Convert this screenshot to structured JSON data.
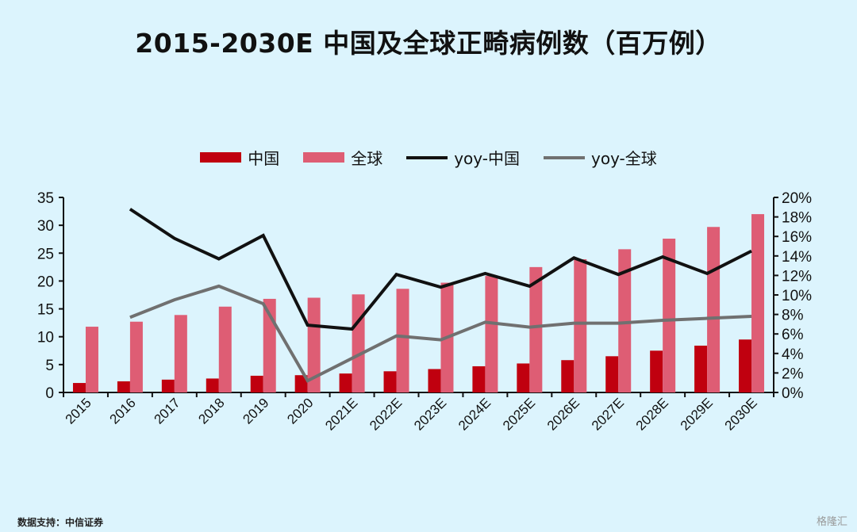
{
  "chart_data": {
    "type": "bar",
    "title": "2015-2030E 中国及全球正畸病例数（百万例）",
    "categories": [
      "2015",
      "2016",
      "2017",
      "2018",
      "2019",
      "2020",
      "2021E",
      "2022E",
      "2023E",
      "2024E",
      "2025E",
      "2026E",
      "2027E",
      "2028E",
      "2029E",
      "2030E"
    ],
    "series": [
      {
        "name": "中国",
        "kind": "bar",
        "axis": "left",
        "color": "#c0000f",
        "values": [
          1.7,
          2.0,
          2.3,
          2.5,
          3.0,
          3.1,
          3.4,
          3.8,
          4.2,
          4.7,
          5.2,
          5.8,
          6.5,
          7.5,
          8.4,
          9.5
        ]
      },
      {
        "name": "全球",
        "kind": "bar",
        "axis": "left",
        "color": "#de5d74",
        "values": [
          11.8,
          12.7,
          13.9,
          15.4,
          16.8,
          17.0,
          17.6,
          18.6,
          19.7,
          20.9,
          22.5,
          23.9,
          25.7,
          27.6,
          29.7,
          32.0
        ]
      },
      {
        "name": "yoy-中国",
        "kind": "line",
        "axis": "right",
        "color": "#111111",
        "values": [
          null,
          18.8,
          15.8,
          13.7,
          16.1,
          6.9,
          6.5,
          12.1,
          10.8,
          12.2,
          10.9,
          13.8,
          12.1,
          13.9,
          12.2,
          14.5
        ]
      },
      {
        "name": "yoy-全球",
        "kind": "line",
        "axis": "right",
        "color": "#707070",
        "values": [
          null,
          7.7,
          9.5,
          10.9,
          9.1,
          1.2,
          3.5,
          5.8,
          5.4,
          7.2,
          6.7,
          7.1,
          7.1,
          7.4,
          7.6,
          7.8
        ]
      }
    ],
    "ylim_left": [
      0,
      35
    ],
    "yticks_left": [
      "0",
      "5",
      "10",
      "15",
      "20",
      "25",
      "30",
      "35"
    ],
    "ylim_right": [
      0,
      20
    ],
    "yticks_right": [
      "0%",
      "2%",
      "4%",
      "6%",
      "8%",
      "10%",
      "12%",
      "14%",
      "16%",
      "18%",
      "20%"
    ],
    "legend_position": "top-center",
    "grid": false
  },
  "footer": "数据支持：中信证券",
  "watermark": "格隆汇"
}
